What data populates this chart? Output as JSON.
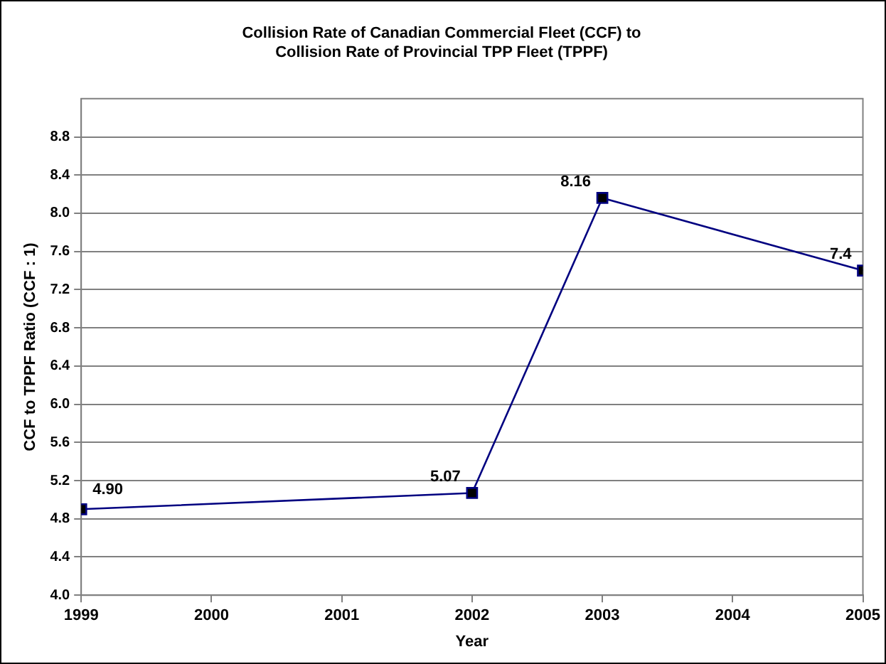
{
  "chart_data": {
    "type": "line",
    "title": "Collision Rate of Canadian Commercial Fleet (CCF) to\nCollision Rate of Provincial TPP Fleet (TPPF)",
    "xlabel": "Year",
    "ylabel": "CCF to TPPF Ratio (CCF : 1)",
    "x": [
      1999,
      2002,
      2003,
      2005
    ],
    "series": [
      {
        "color": "#000080",
        "values": [
          4.9,
          5.07,
          8.16,
          7.4
        ],
        "value_labels": [
          "4.90",
          "5.07",
          "8.16",
          "7.4"
        ]
      }
    ],
    "xlim": [
      1999,
      2005
    ],
    "xticks": [
      1999,
      2000,
      2001,
      2002,
      2003,
      2004,
      2005
    ],
    "ylim": [
      4.0,
      9.2
    ],
    "yticks": [
      {
        "value": 4.0,
        "label": "4.0"
      },
      4.4,
      4.8,
      5.2,
      5.6,
      {
        "value": 6.0,
        "label": "6.0"
      },
      6.4,
      6.8,
      7.2,
      7.6,
      {
        "value": 8.0,
        "label": "8.0"
      },
      8.4,
      8.8
    ],
    "grid": "y",
    "legend": false,
    "marker": "square",
    "line_style": "solid"
  }
}
